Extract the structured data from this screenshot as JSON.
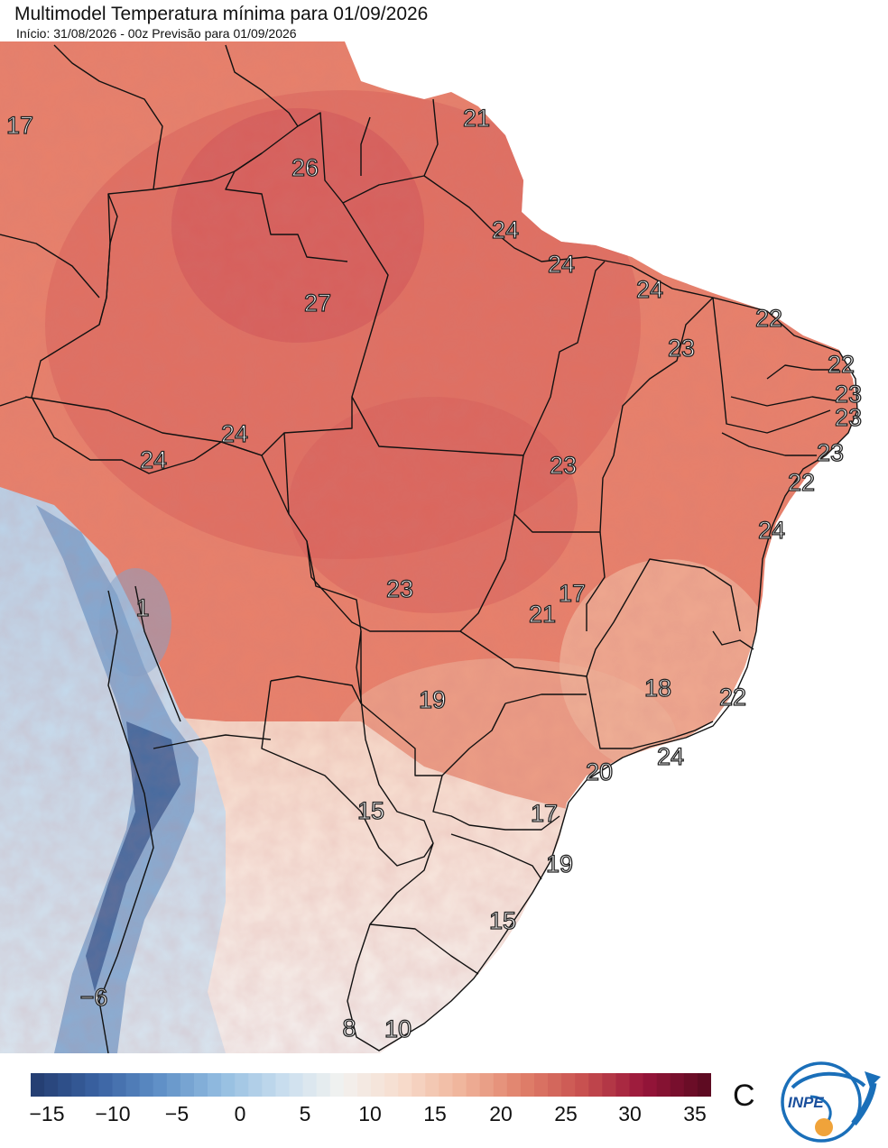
{
  "header": {
    "title": "Multimodel Temperatura mínima para 01/09/2026",
    "subtitle": "Início: 31/08/2026 - 00z  Previsão para 01/09/2026"
  },
  "map_labels": [
    {
      "id": "lbl-17-nw",
      "text": "17"
    },
    {
      "id": "lbl-21-ap",
      "text": "21"
    },
    {
      "id": "lbl-26-rr",
      "text": "26"
    },
    {
      "id": "lbl-24-pa",
      "text": "24"
    },
    {
      "id": "lbl-24-ma",
      "text": "24"
    },
    {
      "id": "lbl-24-ce",
      "text": "24"
    },
    {
      "id": "lbl-27-am",
      "text": "27"
    },
    {
      "id": "lbl-22-rn",
      "text": "22"
    },
    {
      "id": "lbl-23-pi",
      "text": "23"
    },
    {
      "id": "lbl-22-pb",
      "text": "22"
    },
    {
      "id": "lbl-23-pe",
      "text": "23"
    },
    {
      "id": "lbl-23-al",
      "text": "23"
    },
    {
      "id": "lbl-24-ro",
      "text": "24"
    },
    {
      "id": "lbl-24-ac",
      "text": "24"
    },
    {
      "id": "lbl-23-se",
      "text": "23"
    },
    {
      "id": "lbl-23-to",
      "text": "23"
    },
    {
      "id": "lbl-22-ba-n",
      "text": "22"
    },
    {
      "id": "lbl-24-ba",
      "text": "24"
    },
    {
      "id": "lbl-23-mt",
      "text": "23"
    },
    {
      "id": "lbl-17-df",
      "text": "17"
    },
    {
      "id": "lbl-21-go",
      "text": "21"
    },
    {
      "id": "lbl-1-peru",
      "text": "1"
    },
    {
      "id": "lbl-18-mg",
      "text": "18"
    },
    {
      "id": "lbl-22-es",
      "text": "22"
    },
    {
      "id": "lbl-19-ms",
      "text": "19"
    },
    {
      "id": "lbl-24-rj",
      "text": "24"
    },
    {
      "id": "lbl-20-sp",
      "text": "20"
    },
    {
      "id": "lbl-15-py",
      "text": "15"
    },
    {
      "id": "lbl-17-pr",
      "text": "17"
    },
    {
      "id": "lbl-19-sc",
      "text": "19"
    },
    {
      "id": "lbl-15-rs",
      "text": "15"
    },
    {
      "id": "lbl-minus6-chile",
      "text": "−6"
    },
    {
      "id": "lbl-8-arg",
      "text": "8"
    },
    {
      "id": "lbl-10-uy",
      "text": "10"
    }
  ],
  "colorbar": {
    "unit": "C",
    "ticks": [
      "−15",
      "−10",
      "−5",
      "0",
      "5",
      "10",
      "15",
      "20",
      "25",
      "30",
      "35"
    ],
    "colors": [
      "#253f73",
      "#3a63a3",
      "#5f8fc6",
      "#92bce0",
      "#c6dcee",
      "#f2f2f0",
      "#f7dccd",
      "#f0b49b",
      "#e0806a",
      "#c8504f",
      "#98153a",
      "#5e0b22"
    ]
  },
  "logo": {
    "text": "INPE"
  }
}
